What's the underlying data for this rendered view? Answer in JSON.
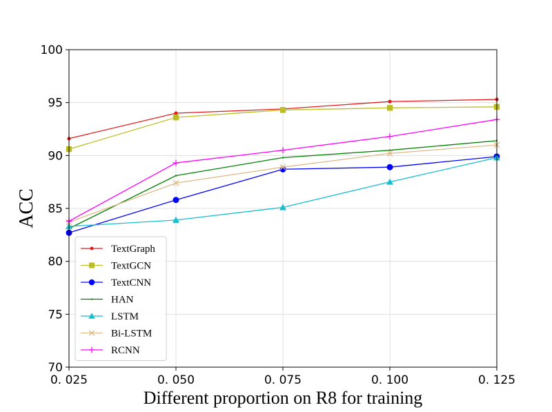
{
  "chart_data": {
    "type": "line",
    "xlabel": "Different proportion on R8 for training",
    "ylabel": "ACC",
    "x": [
      0.025,
      0.05,
      0.075,
      0.1,
      0.125
    ],
    "x_tick_labels": [
      "0. 025",
      "0. 050",
      "0. 075",
      "0. 100",
      "0. 125"
    ],
    "y_ticks": [
      70,
      75,
      80,
      85,
      90,
      95,
      100
    ],
    "xlim": [
      0.025,
      0.125
    ],
    "ylim": [
      70,
      100
    ],
    "grid": true,
    "legend_position": "lower-left",
    "series": [
      {
        "name": "TextGraph",
        "color": "#e31a1c",
        "marker": "dot",
        "values": [
          91.6,
          94.0,
          94.4,
          95.1,
          95.3
        ]
      },
      {
        "name": "TextGCN",
        "color": "#bcbd22",
        "marker": "square",
        "values": [
          90.6,
          93.6,
          94.3,
          94.5,
          94.6
        ]
      },
      {
        "name": "TextCNN",
        "color": "#0000ff",
        "marker": "circle",
        "values": [
          82.7,
          85.8,
          88.7,
          88.9,
          89.9
        ]
      },
      {
        "name": "HAN",
        "color": "#008000",
        "marker": "pixel",
        "values": [
          83.1,
          88.1,
          89.8,
          90.5,
          91.4
        ]
      },
      {
        "name": "LSTM",
        "color": "#17becf",
        "marker": "triangle",
        "values": [
          83.3,
          83.9,
          85.1,
          87.5,
          89.8
        ]
      },
      {
        "name": "Bi-LSTM",
        "color": "#deb887",
        "marker": "x",
        "values": [
          83.7,
          87.4,
          88.9,
          90.2,
          91.0
        ]
      },
      {
        "name": "RCNN",
        "color": "#ff00ff",
        "marker": "plus",
        "values": [
          83.8,
          89.3,
          90.5,
          91.8,
          93.4
        ]
      }
    ]
  }
}
